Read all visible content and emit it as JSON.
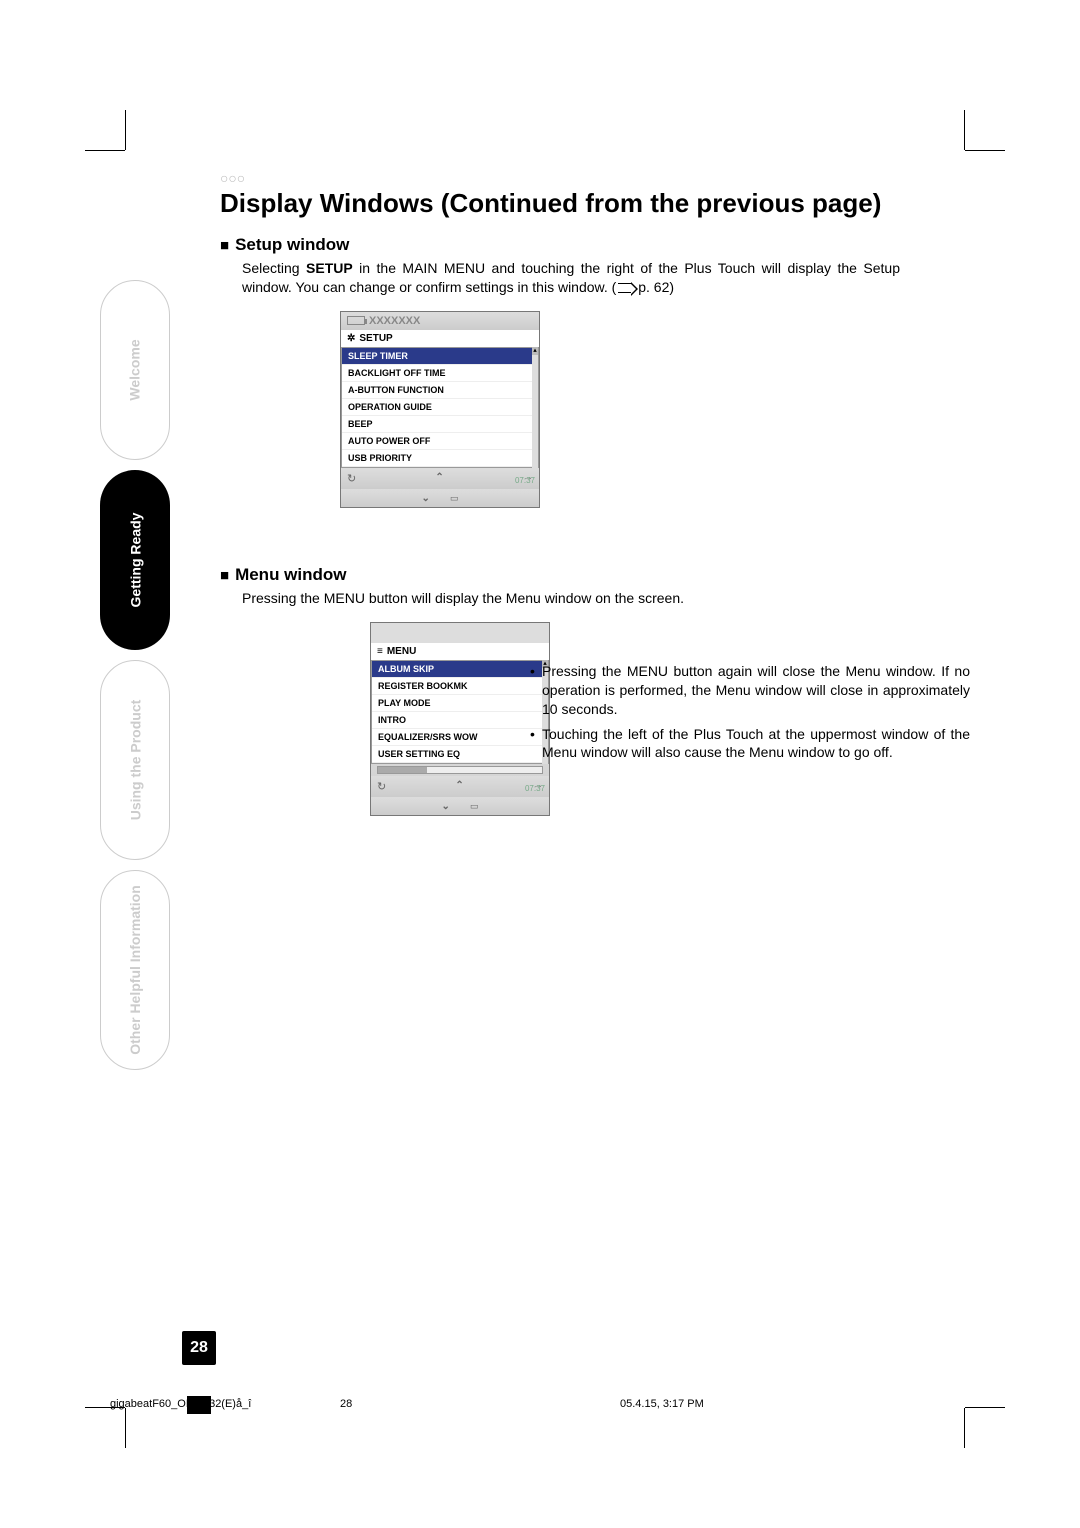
{
  "page_title": "Display Windows (Continued from the previous page)",
  "sidebar": {
    "welcome": "Welcome",
    "ready": "Getting Ready",
    "product": "Using the Product",
    "info": "Other Helpful Information"
  },
  "setup_section": {
    "heading": "Setup window",
    "text_pre": "Selecting ",
    "text_bold": "SETUP",
    "text_mid": " in the MAIN MENU and touching the right of the Plus Touch will display the Setup window. You can change or confirm settings in this window. (",
    "text_ref": " p. 62)",
    "device": {
      "title": "XXXXXXX",
      "header": "SETUP",
      "items": [
        "SLEEP TIMER",
        "BACKLIGHT OFF TIME",
        "A-BUTTON FUNCTION",
        "OPERATION GUIDE",
        "BEEP",
        "AUTO POWER OFF",
        "USB PRIORITY"
      ],
      "time": "07:37"
    }
  },
  "menu_section": {
    "heading": "Menu window",
    "text": "Pressing the MENU button will display the Menu window on the screen.",
    "device": {
      "header": "MENU",
      "items": [
        "ALBUM SKIP",
        "REGISTER BOOKMK",
        "PLAY MODE",
        "INTRO",
        "EQUALIZER/SRS WOW",
        "USER SETTING EQ"
      ],
      "time": "07:37"
    },
    "bullets": [
      "Pressing the MENU button again will close the Menu window. If no operation is performed, the Menu window will close in approximately 10 seconds.",
      "Touching the left of the Plus Touch at the uppermost window of the Menu window will also cause the Menu window to go off."
    ]
  },
  "page_number": "28",
  "footer": {
    "file": "gigabeatF60_OP16-32(E)å_î",
    "pg": "28",
    "date": "05.4.15, 3:17 PM"
  }
}
